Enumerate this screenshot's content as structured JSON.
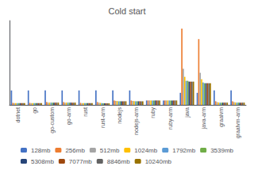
{
  "chart_data": {
    "type": "bar",
    "title": "Cold start",
    "categories": [
      "dotnet",
      "go",
      "go-custom",
      "go-arm",
      "rust",
      "rust-arm",
      "nodejs",
      "nodejs-arm",
      "ruby",
      "ruby-arm",
      "java",
      "java-arm",
      "graalvm",
      "graalvm-arm"
    ],
    "series": [
      {
        "name": "128mb",
        "color": "#4472C4",
        "values": [
          1.8,
          1.8,
          1.8,
          1.8,
          1.8,
          1.8,
          1.8,
          1.8,
          0.55,
          0.55,
          1.5,
          1.5,
          1.8,
          1.8
        ]
      },
      {
        "name": "256mb",
        "color": "#ED7D31",
        "values": [
          0.25,
          0.25,
          0.35,
          0.35,
          0.25,
          0.35,
          0.55,
          0.55,
          0.55,
          0.55,
          9.5,
          8.2,
          0.45,
          0.45
        ]
      },
      {
        "name": "512mb",
        "color": "#A5A5A5",
        "values": [
          0.22,
          0.22,
          0.28,
          0.28,
          0.22,
          0.28,
          0.5,
          0.5,
          0.55,
          0.55,
          4.5,
          4.0,
          0.35,
          0.35
        ]
      },
      {
        "name": "1024mb",
        "color": "#FFC000",
        "values": [
          0.22,
          0.22,
          0.28,
          0.28,
          0.22,
          0.25,
          0.48,
          0.48,
          0.55,
          0.55,
          3.5,
          3.2,
          0.3,
          0.3
        ]
      },
      {
        "name": "1792mb",
        "color": "#5B9BD5",
        "values": [
          0.22,
          0.22,
          0.28,
          0.28,
          0.22,
          0.22,
          0.45,
          0.45,
          0.55,
          0.55,
          3.0,
          2.8,
          0.28,
          0.28
        ]
      },
      {
        "name": "3539mb",
        "color": "#70AD47",
        "values": [
          0.22,
          0.22,
          0.28,
          0.28,
          0.22,
          0.2,
          0.45,
          0.45,
          0.55,
          0.55,
          3.0,
          2.7,
          0.28,
          0.28
        ]
      },
      {
        "name": "5308mb",
        "color": "#264478",
        "values": [
          0.22,
          0.22,
          0.28,
          0.28,
          0.22,
          0.2,
          0.45,
          0.45,
          0.55,
          0.55,
          2.9,
          2.7,
          0.28,
          0.28
        ]
      },
      {
        "name": "7077mb",
        "color": "#9E480E",
        "values": [
          0.22,
          0.22,
          0.28,
          0.28,
          0.22,
          0.2,
          0.45,
          0.45,
          0.55,
          0.55,
          2.9,
          2.7,
          0.28,
          0.28
        ]
      },
      {
        "name": "8846mb",
        "color": "#636363",
        "values": [
          0.22,
          0.22,
          0.28,
          0.28,
          0.22,
          0.2,
          0.45,
          0.45,
          0.55,
          0.55,
          2.9,
          2.7,
          0.28,
          0.28
        ]
      },
      {
        "name": "10240mb",
        "color": "#997300",
        "values": [
          0.22,
          0.22,
          0.28,
          0.28,
          0.22,
          0.2,
          0.45,
          0.45,
          0.55,
          0.55,
          2.9,
          2.7,
          0.28,
          0.28
        ]
      }
    ],
    "ylim": [
      0,
      10.5
    ],
    "grid": false,
    "legend": "bottom",
    "tick_labels": "x"
  }
}
